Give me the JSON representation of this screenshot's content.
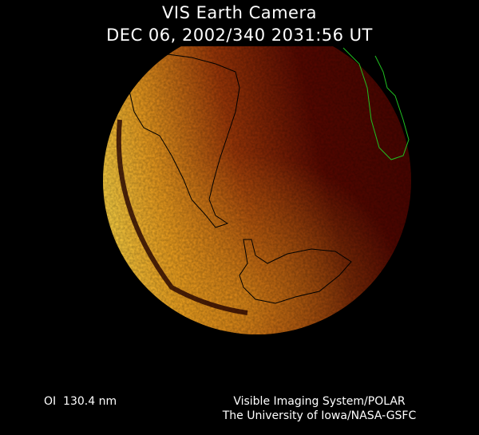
{
  "header": {
    "title": "VIS Earth Camera",
    "timestamp": "DEC 06, 2002/340 2031:56 UT"
  },
  "footer": {
    "wavelength": "OI  130.4 nm",
    "instrument": "Visible Imaging System/POLAR",
    "institution": "The University of Iowa/NASA-GSFC"
  },
  "colors": {
    "background": "#000000",
    "dayside": "#f8c030",
    "nightside": "#4a0500",
    "coastline": "#000000",
    "nightside_coastline": "#20c020"
  }
}
